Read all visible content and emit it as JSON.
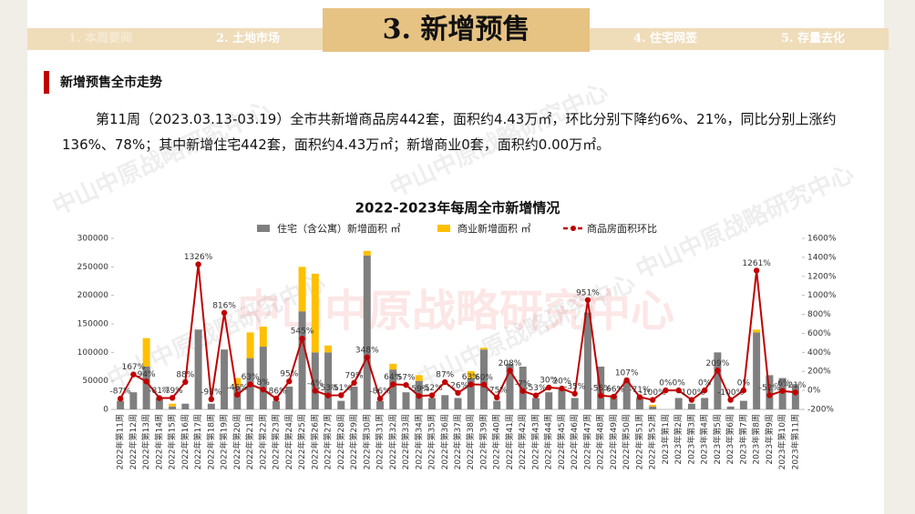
{
  "header": {
    "tabs": [
      "1. 本周要闻",
      "2. 土地市场",
      "3. 新增预售",
      "4. 住宅网签",
      "5. 存量去化"
    ]
  },
  "section": {
    "title": "新增预售全市走势",
    "paragraph": "第11周（2023.03.13-03.19）全市共新增商品房442套，面积约4.43万㎡，环比分别下降约6%、21%，同比分别上涨约136%、78%；其中新增住宅442套，面积约4.43万㎡；新增商业0套，面积约0.00万㎡。"
  },
  "watermark": "中山中原战略研究中心",
  "chart_data": {
    "type": "bar-line",
    "title": "2022-2023年每周全市新增情况",
    "categories": [
      "2022年第11周",
      "2022年第12周",
      "2022年第13周",
      "2022年第14周",
      "2022年第15周",
      "2022年第16周",
      "2022年第17周",
      "2022年第18周",
      "2022年第19周",
      "2022年第20周",
      "2022年第21周",
      "2022年第22周",
      "2022年第23周",
      "2022年第24周",
      "2022年第25周",
      "2022年第26周",
      "2022年第27周",
      "2022年第28周",
      "2022年第29周",
      "2022年第30周",
      "2022年第31周",
      "2022年第32周",
      "2022年第33周",
      "2022年第34周",
      "2022年第35周",
      "2022年第36周",
      "2022年第37周",
      "2022年第38周",
      "2022年第39周",
      "2022年第40周",
      "2022年第41周",
      "2022年第42周",
      "2022年第43周",
      "2022年第44周",
      "2022年第45周",
      "2022年第46周",
      "2022年第47周",
      "2022年第48周",
      "2022年第49周",
      "2022年第50周",
      "2022年第51周",
      "2022年第52周",
      "2023年第1周",
      "2023年第2周",
      "2023年第3周",
      "2023年第4周",
      "2023年第5周",
      "2023年第6周",
      "2023年第7周",
      "2023年第8周",
      "2023年第9周",
      "2023年第10周",
      "2023年第11周"
    ],
    "series": [
      {
        "name": "住宅（含公寓）新增面积 ㎡",
        "color": "#7f7f7f",
        "values": [
          15000,
          30000,
          75000,
          20000,
          5000,
          10000,
          140000,
          10000,
          105000,
          40000,
          90000,
          110000,
          15000,
          40000,
          172000,
          100000,
          100000,
          15000,
          40000,
          270000,
          15000,
          70000,
          30000,
          50000,
          20000,
          25000,
          20000,
          55000,
          105000,
          15000,
          80000,
          75000,
          20000,
          30000,
          35000,
          20000,
          170000,
          75000,
          25000,
          50000,
          20000,
          5000,
          0,
          20000,
          10000,
          20000,
          100000,
          5000,
          15000,
          135000,
          60000,
          55000,
          44200
        ]
      },
      {
        "name": "商业新增面积 ㎡",
        "color": "#ffc000",
        "values": [
          0,
          0,
          50000,
          0,
          5000,
          0,
          0,
          0,
          0,
          15000,
          45000,
          35000,
          0,
          0,
          78000,
          138000,
          12000,
          0,
          0,
          8000,
          0,
          10000,
          0,
          10000,
          0,
          0,
          0,
          12000,
          3000,
          0,
          0,
          0,
          0,
          0,
          0,
          0,
          0,
          0,
          0,
          0,
          0,
          3000,
          0,
          0,
          0,
          0,
          0,
          0,
          0,
          5000,
          0,
          0,
          0
        ]
      },
      {
        "name": "商品房面积环比",
        "color": "#c00000",
        "axis": "y2",
        "values": [
          -87,
          167,
          94,
          -81,
          -79,
          88,
          1326,
          -93,
          816,
          -46,
          63,
          8,
          -86,
          95,
          545,
          -4,
          -53,
          -51,
          79,
          348,
          -86,
          64,
          57,
          -59,
          -52,
          87,
          -26,
          63,
          60,
          -75,
          208,
          -7,
          -53,
          30,
          20,
          -35,
          951,
          -55,
          -66,
          107,
          -71,
          -100,
          0,
          0,
          -100,
          0,
          209,
          -100,
          0,
          1261,
          -52,
          -6,
          -21
        ],
        "value_labels": [
          "-87%",
          "167%",
          "94%",
          "-81%",
          "-79%",
          "88%",
          "1326%",
          "-93%",
          "816%",
          "-46%",
          "63%",
          "8%",
          "-86%",
          "95%",
          "545%",
          "-4%",
          "-53%",
          "-51%",
          "79%",
          "348%",
          "-86%",
          "64%",
          "57%",
          "-59%",
          "-52%",
          "87%",
          "-26%",
          "63%",
          "60%",
          "-75%",
          "208%",
          "-7%",
          "-53%",
          "30%",
          "20%",
          "-35%",
          "951%",
          "-55%",
          "-66%",
          "107%",
          "-71%",
          "-100%",
          "0%",
          "0%",
          "-100%",
          "0%",
          "209%",
          "-100%",
          "0%",
          "1261%",
          "-52%",
          "-6%",
          "-21%"
        ]
      }
    ],
    "ylim": [
      0,
      300000
    ],
    "yticks": [
      0,
      50000,
      100000,
      150000,
      200000,
      250000,
      300000
    ],
    "y2lim": [
      -200,
      1600
    ],
    "y2ticks": [
      {
        "value": -200,
        "label": "-200%"
      },
      {
        "value": 0,
        "label": "0%"
      },
      {
        "value": 200,
        "label": "200%"
      },
      {
        "value": 400,
        "label": "400%"
      },
      {
        "value": 600,
        "label": "600%"
      },
      {
        "value": 800,
        "label": "800%"
      },
      {
        "value": 1000,
        "label": "1000%"
      },
      {
        "value": 1200,
        "label": "1200%"
      },
      {
        "value": 1400,
        "label": "1400%"
      },
      {
        "value": 1600,
        "label": "1600%"
      }
    ]
  }
}
